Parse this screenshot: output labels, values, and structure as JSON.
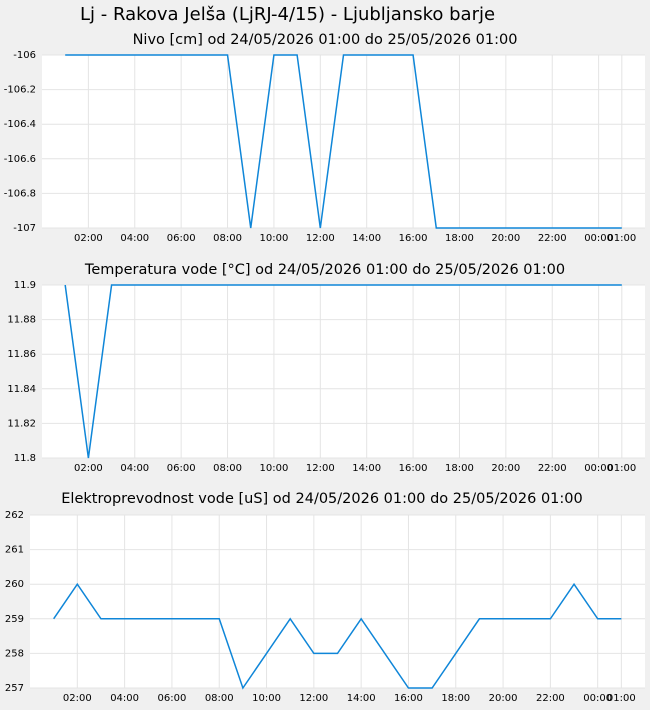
{
  "title": "Lj - Rakova Jelša (LjRJ-4/15) - Ljubljansko barje",
  "chart_data": [
    {
      "type": "line",
      "title": "Nivo [cm] od 24/05/2026 01:00 do 25/05/2026 01:00",
      "x": [
        1,
        2,
        3,
        4,
        5,
        6,
        7,
        8,
        9,
        10,
        11,
        12,
        13,
        14,
        15,
        16,
        17,
        18,
        19,
        20,
        21,
        22,
        23,
        24,
        25
      ],
      "series": [
        {
          "name": "Nivo",
          "color": "#0f86d8",
          "values": [
            -106,
            -106,
            -106,
            -106,
            -106,
            -106,
            -106,
            -106,
            -107,
            -106,
            -106,
            -107,
            -106,
            -106,
            -106,
            -106,
            -107,
            -107,
            -107,
            -107,
            -107,
            -107,
            -107,
            -107,
            -107
          ]
        }
      ],
      "xlim": [
        0,
        26
      ],
      "xticks": [
        {
          "value": 2,
          "label": "02:00"
        },
        {
          "value": 4,
          "label": "04:00"
        },
        {
          "value": 6,
          "label": "06:00"
        },
        {
          "value": 8,
          "label": "08:00"
        },
        {
          "value": 10,
          "label": "10:00"
        },
        {
          "value": 12,
          "label": "12:00"
        },
        {
          "value": 14,
          "label": "14:00"
        },
        {
          "value": 16,
          "label": "16:00"
        },
        {
          "value": 18,
          "label": "18:00"
        },
        {
          "value": 20,
          "label": "20:00"
        },
        {
          "value": 22,
          "label": "22:00"
        },
        {
          "value": 24,
          "label": "00:00"
        },
        {
          "value": 25,
          "label": "01:00"
        }
      ],
      "ylim": [
        -107,
        -106
      ],
      "yticks": [
        -106,
        -106.2,
        -106.4,
        -106.6,
        -106.8,
        -107
      ],
      "grid": true
    },
    {
      "type": "line",
      "title": "Temperatura vode [°C] od 24/05/2026 01:00 do 25/05/2026 01:00",
      "x": [
        1,
        2,
        3,
        4,
        5,
        6,
        7,
        8,
        9,
        10,
        11,
        12,
        13,
        14,
        15,
        16,
        17,
        18,
        19,
        20,
        21,
        22,
        23,
        24,
        25
      ],
      "series": [
        {
          "name": "Temperatura vode",
          "color": "#0f86d8",
          "values": [
            11.9,
            11.8,
            11.9,
            11.9,
            11.9,
            11.9,
            11.9,
            11.9,
            11.9,
            11.9,
            11.9,
            11.9,
            11.9,
            11.9,
            11.9,
            11.9,
            11.9,
            11.9,
            11.9,
            11.9,
            11.9,
            11.9,
            11.9,
            11.9,
            11.9
          ]
        }
      ],
      "xlim": [
        0,
        26
      ],
      "xticks": [
        {
          "value": 2,
          "label": "02:00"
        },
        {
          "value": 4,
          "label": "04:00"
        },
        {
          "value": 6,
          "label": "06:00"
        },
        {
          "value": 8,
          "label": "08:00"
        },
        {
          "value": 10,
          "label": "10:00"
        },
        {
          "value": 12,
          "label": "12:00"
        },
        {
          "value": 14,
          "label": "14:00"
        },
        {
          "value": 16,
          "label": "16:00"
        },
        {
          "value": 18,
          "label": "18:00"
        },
        {
          "value": 20,
          "label": "20:00"
        },
        {
          "value": 22,
          "label": "22:00"
        },
        {
          "value": 24,
          "label": "00:00"
        },
        {
          "value": 25,
          "label": "01:00"
        }
      ],
      "ylim": [
        11.8,
        11.9
      ],
      "yticks": [
        11.9,
        11.88,
        11.86,
        11.84,
        11.82,
        11.8
      ],
      "grid": true
    },
    {
      "type": "line",
      "title": "Elektroprevodnost vode [uS] od 24/05/2026 01:00 do 25/05/2026 01:00",
      "x": [
        1,
        2,
        3,
        4,
        5,
        6,
        7,
        8,
        9,
        10,
        11,
        12,
        13,
        14,
        15,
        16,
        17,
        18,
        19,
        20,
        21,
        22,
        23,
        24,
        25
      ],
      "series": [
        {
          "name": "Elektroprevodnost vode",
          "color": "#0f86d8",
          "values": [
            259,
            260,
            259,
            259,
            259,
            259,
            259,
            259,
            257,
            258,
            259,
            258,
            258,
            259,
            258,
            257,
            257,
            258,
            259,
            259,
            259,
            259,
            260,
            259,
            259
          ]
        }
      ],
      "xlim": [
        0,
        26
      ],
      "xticks": [
        {
          "value": 2,
          "label": "02:00"
        },
        {
          "value": 4,
          "label": "04:00"
        },
        {
          "value": 6,
          "label": "06:00"
        },
        {
          "value": 8,
          "label": "08:00"
        },
        {
          "value": 10,
          "label": "10:00"
        },
        {
          "value": 12,
          "label": "12:00"
        },
        {
          "value": 14,
          "label": "14:00"
        },
        {
          "value": 16,
          "label": "16:00"
        },
        {
          "value": 18,
          "label": "18:00"
        },
        {
          "value": 20,
          "label": "20:00"
        },
        {
          "value": 22,
          "label": "22:00"
        },
        {
          "value": 24,
          "label": "00:00"
        },
        {
          "value": 25,
          "label": "01:00"
        }
      ],
      "ylim": [
        257,
        262
      ],
      "yticks": [
        262,
        261,
        260,
        259,
        258,
        257
      ],
      "grid": true
    }
  ]
}
